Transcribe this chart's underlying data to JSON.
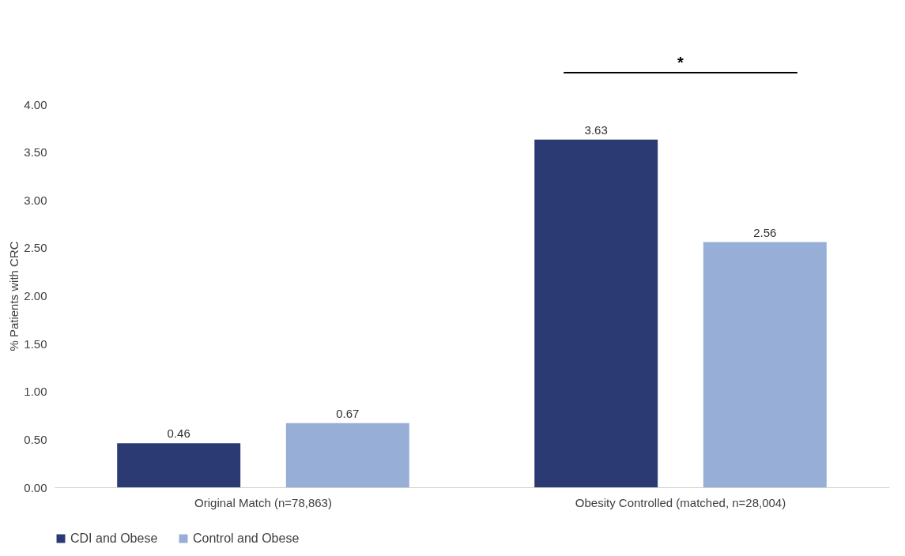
{
  "chart_data": {
    "type": "bar",
    "ylabel": "% Patients with CRC",
    "categories": [
      "Original Match (n=78,863)",
      "Obesity Controlled (matched, n=28,004)"
    ],
    "series": [
      {
        "name": "CDI and Obese",
        "color": "#2b3a73",
        "values": [
          0.46,
          3.63
        ]
      },
      {
        "name": "Control and Obese",
        "color": "#97aed6",
        "values": [
          0.67,
          2.56
        ]
      }
    ],
    "ylim": [
      0,
      4
    ],
    "yticks": [
      {
        "value": 0,
        "label": "0.00"
      },
      {
        "value": 0.5,
        "label": "0.50"
      },
      {
        "value": 1,
        "label": "1.00"
      },
      {
        "value": 1.5,
        "label": "1.50"
      },
      {
        "value": 2,
        "label": "2.00"
      },
      {
        "value": 2.5,
        "label": "2.50"
      },
      {
        "value": 3,
        "label": "3.00"
      },
      {
        "value": 3.5,
        "label": "3.50"
      },
      {
        "value": 4,
        "label": "4.00"
      }
    ],
    "data_labels": true,
    "grid": false,
    "legend": "bottom",
    "annotations": [
      "*"
    ]
  }
}
